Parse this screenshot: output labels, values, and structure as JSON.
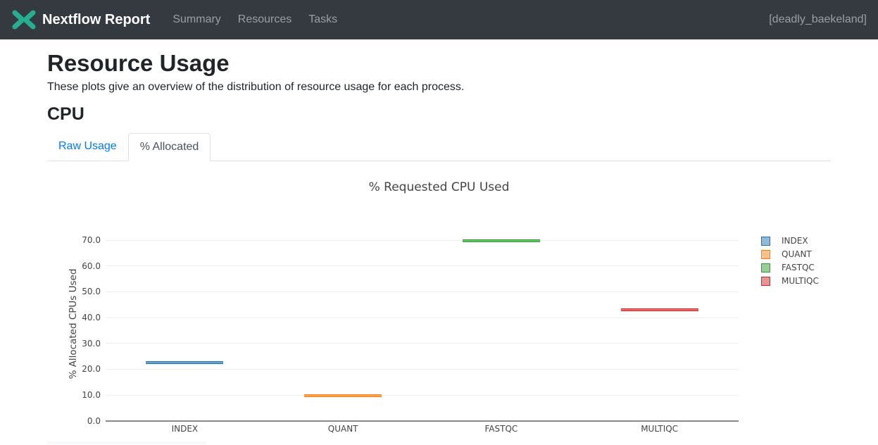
{
  "navbar": {
    "brand": "Nextflow Report",
    "logo_color": "#26AE90",
    "bg_color": "#343a40",
    "items": [
      {
        "label": "Summary"
      },
      {
        "label": "Resources"
      },
      {
        "label": "Tasks"
      }
    ],
    "run_name": "[deadly_baekeland]"
  },
  "page": {
    "title": "Resource Usage",
    "subtitle": "These plots give an overview of the distribution of resource usage for each process.",
    "section_heading": "CPU"
  },
  "tabs": [
    {
      "label": "Raw Usage",
      "active": false,
      "color": "#007bff"
    },
    {
      "label": "% Allocated",
      "active": true,
      "color": "#495057"
    }
  ],
  "chart_data": {
    "type": "box",
    "title": "% Requested CPU Used",
    "ylabel": "% Allocated CPUs Used",
    "xlabel": "",
    "categories": [
      "INDEX",
      "QUANT",
      "FASTQC",
      "MULTIQC"
    ],
    "series": [
      {
        "name": "INDEX",
        "color": "#1f77b4",
        "median": 22.7
      },
      {
        "name": "QUANT",
        "color": "#ff7f0e",
        "median": 9.8
      },
      {
        "name": "FASTQC",
        "color": "#2ca02c",
        "median": 69.8
      },
      {
        "name": "MULTIQC",
        "color": "#d62728",
        "median": 42.9
      }
    ],
    "ylim": [
      0,
      75
    ],
    "yticks": [
      "0.0",
      "10.0",
      "20.0",
      "30.0",
      "40.0",
      "50.0",
      "60.0",
      "70.0"
    ],
    "grid": true,
    "legend_position": "right",
    "text_color": "#444444"
  }
}
